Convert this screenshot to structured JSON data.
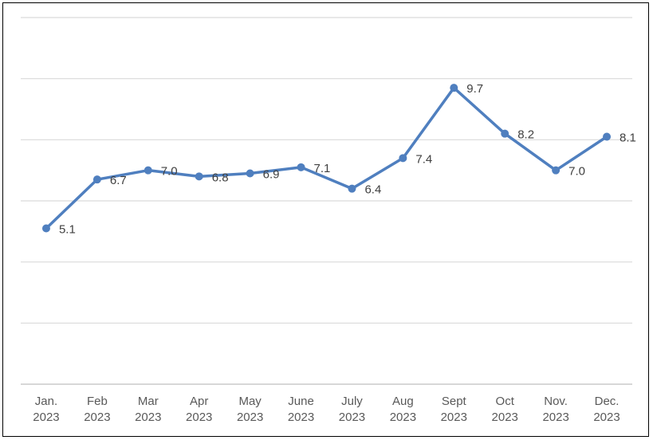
{
  "chart_data": {
    "type": "line",
    "categories": [
      [
        "Jan.",
        "2023"
      ],
      [
        "Feb",
        "2023"
      ],
      [
        "Mar",
        "2023"
      ],
      [
        "Apr",
        "2023"
      ],
      [
        "May",
        "2023"
      ],
      [
        "June",
        "2023"
      ],
      [
        "July",
        "2023"
      ],
      [
        "Aug",
        "2023"
      ],
      [
        "Sept",
        "2023"
      ],
      [
        "Oct",
        "2023"
      ],
      [
        "Nov.",
        "2023"
      ],
      [
        "Dec.",
        "2023"
      ]
    ],
    "series": [
      {
        "values": [
          5.1,
          6.7,
          7.0,
          6.8,
          6.9,
          7.1,
          6.4,
          7.4,
          9.7,
          8.2,
          7.0,
          8.1
        ],
        "labels": [
          "5.1",
          "6.7",
          "7.0",
          "6.8",
          "6.9",
          "7.1",
          "6.4",
          "7.4",
          "9.7",
          "8.2",
          "7.0",
          "8.1"
        ],
        "color": "#4F7FBF"
      }
    ],
    "ylim": [
      0,
      12
    ],
    "grid": true,
    "gridline_values": [
      0,
      2,
      4,
      6,
      8,
      10,
      12
    ],
    "gridline_color": "#D9D9D9",
    "axis_color": "#BFBFBF",
    "y_tick_labels": false,
    "legend": "none"
  }
}
